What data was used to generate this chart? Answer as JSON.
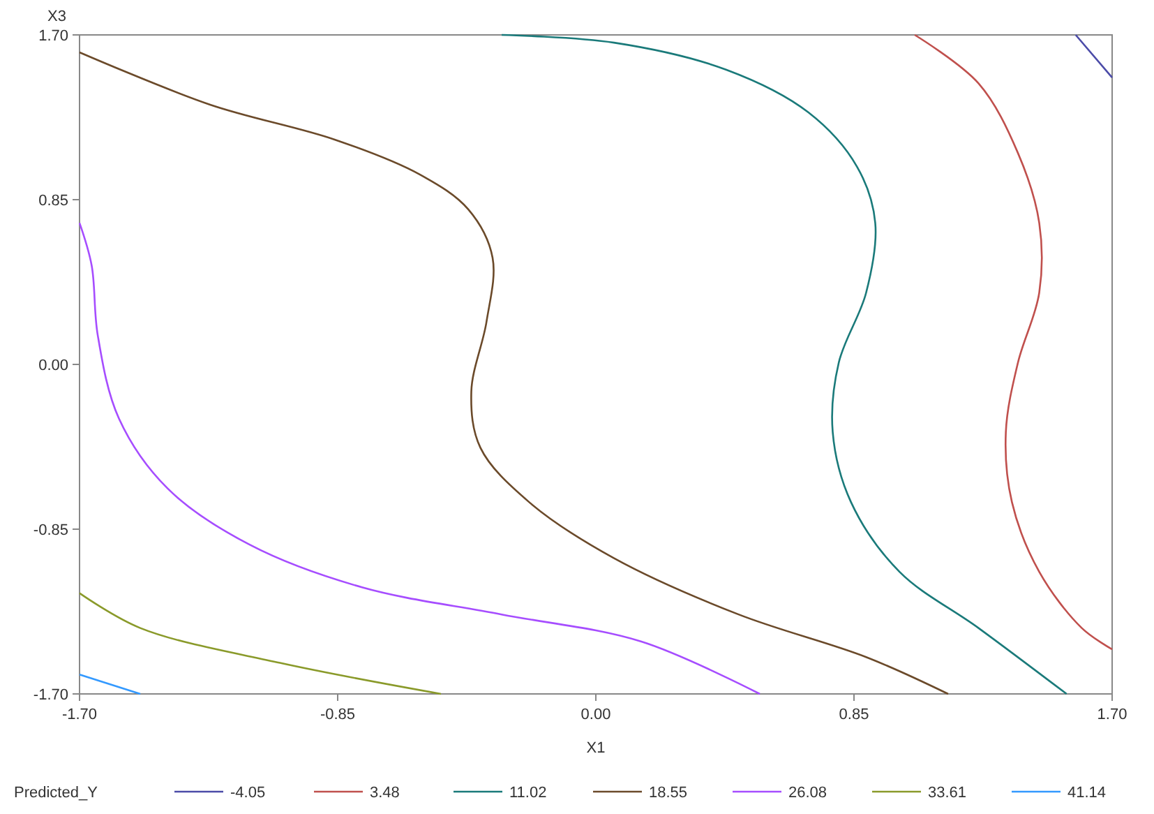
{
  "chart_data": {
    "type": "line",
    "xlabel": "X1",
    "ylabel": "X3",
    "legend_title": "Predicted_Y",
    "legend": "bottom",
    "grid": false,
    "marker": "none",
    "line_style": "solid",
    "xlim": [
      -1.7,
      1.7
    ],
    "ylim": [
      -1.7,
      1.7
    ],
    "xticks": [
      {
        "value": -1.7,
        "label": "-1.70"
      },
      {
        "value": -0.85,
        "label": "-0.85"
      },
      {
        "value": 0,
        "label": "0.00"
      },
      {
        "value": 0.85,
        "label": "0.85"
      },
      {
        "value": 1.7,
        "label": "1.70"
      }
    ],
    "yticks": [
      {
        "value": -1.7,
        "label": "-1.70"
      },
      {
        "value": -0.85,
        "label": "-0.85"
      },
      {
        "value": 0,
        "label": "0.00"
      },
      {
        "value": 0.85,
        "label": "0.85"
      },
      {
        "value": 1.7,
        "label": "1.70"
      }
    ],
    "series": [
      {
        "name": "-4.05",
        "color": "#4b4ba8",
        "x": [
          1.58,
          1.7
        ],
        "values": [
          1.7,
          1.48
        ]
      },
      {
        "name": "3.48",
        "color": "#c0504d",
        "x": [
          1.05,
          1.26,
          1.39,
          1.46,
          1.46,
          1.39,
          1.35,
          1.37,
          1.46,
          1.6,
          1.7
        ],
        "values": [
          1.7,
          1.45,
          1.09,
          0.73,
          0.37,
          0.01,
          -0.35,
          -0.71,
          -1.07,
          -1.36,
          -1.47
        ]
      },
      {
        "name": "11.02",
        "color": "#1a7a7a",
        "x": [
          -0.31,
          0.06,
          0.43,
          0.7,
          0.86,
          0.92,
          0.89,
          0.8,
          0.78,
          0.84,
          1.0,
          1.26,
          1.55
        ],
        "values": [
          1.7,
          1.66,
          1.52,
          1.3,
          1.02,
          0.73,
          0.37,
          0.01,
          -0.35,
          -0.71,
          -1.07,
          -1.36,
          -1.7
        ]
      },
      {
        "name": "18.55",
        "color": "#6b4a2a",
        "x": [
          -1.7,
          -1.27,
          -0.86,
          -0.58,
          -0.42,
          -0.34,
          -0.36,
          -0.41,
          -0.38,
          -0.22,
          0.06,
          0.47,
          0.89,
          1.16
        ],
        "values": [
          1.61,
          1.34,
          1.16,
          0.98,
          0.8,
          0.55,
          0.22,
          -0.14,
          -0.43,
          -0.71,
          -1.0,
          -1.29,
          -1.51,
          -1.7
        ]
      },
      {
        "name": "26.08",
        "color": "#a64dff",
        "x": [
          -1.7,
          -1.66,
          -1.64,
          -1.57,
          -1.41,
          -1.14,
          -0.77,
          -0.31,
          0.15,
          0.54
        ],
        "values": [
          0.73,
          0.51,
          0.15,
          -0.28,
          -0.64,
          -0.93,
          -1.15,
          -1.29,
          -1.43,
          -1.7
        ]
      },
      {
        "name": "33.61",
        "color": "#8a9a2a",
        "x": [
          -1.7,
          -1.5,
          -1.04,
          -0.51
        ],
        "values": [
          -1.18,
          -1.36,
          -1.54,
          -1.7
        ]
      },
      {
        "name": "41.14",
        "color": "#3399ff",
        "x": [
          -1.7,
          -1.5
        ],
        "values": [
          -1.6,
          -1.7
        ]
      }
    ]
  }
}
